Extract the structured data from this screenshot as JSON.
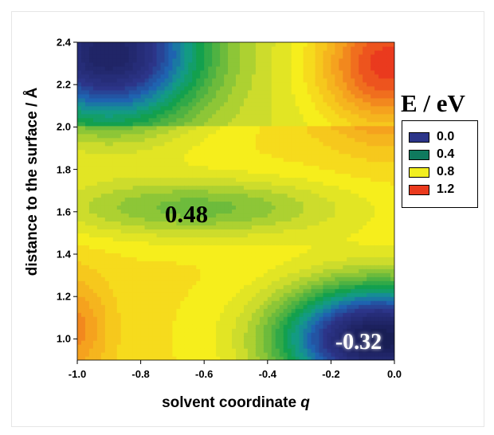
{
  "chart_data": {
    "type": "heatmap",
    "title": "",
    "xlabel": "solvent coordinate",
    "xlabel_symbol": "q",
    "ylabel": "distance to the surface / Å",
    "xlim": [
      -1.0,
      0.0
    ],
    "ylim": [
      0.9,
      2.4
    ],
    "x_ticks": [
      "-1.0",
      "-0.8",
      "-0.6",
      "-0.4",
      "-0.2",
      "0.0"
    ],
    "y_ticks": [
      "1.0",
      "1.2",
      "1.4",
      "1.6",
      "1.8",
      "2.0",
      "2.2",
      "2.4"
    ],
    "colorbar": {
      "title": "E / eV",
      "entries": [
        {
          "label": "0.0",
          "value": 0.0,
          "color": "#2c3589"
        },
        {
          "label": "0.4",
          "value": 0.4,
          "color": "#0f7a5e"
        },
        {
          "label": "0.8",
          "value": 0.8,
          "color": "#f2ee20"
        },
        {
          "label": "1.2",
          "value": 1.2,
          "color": "#ea3a1e"
        }
      ],
      "placement": "right"
    },
    "color_stops": [
      {
        "value": -0.32,
        "color": "#181c52"
      },
      {
        "value": 0.0,
        "color": "#2c3589"
      },
      {
        "value": 0.15,
        "color": "#1f63b0"
      },
      {
        "value": 0.28,
        "color": "#139a8e"
      },
      {
        "value": 0.4,
        "color": "#13a04e"
      },
      {
        "value": 0.55,
        "color": "#6dbb3c"
      },
      {
        "value": 0.7,
        "color": "#cddc2c"
      },
      {
        "value": 0.8,
        "color": "#f6ee1c"
      },
      {
        "value": 1.0,
        "color": "#f5a21e"
      },
      {
        "value": 1.2,
        "color": "#ea3a1e"
      }
    ],
    "surface_features": [
      {
        "kind": "minimum",
        "q": -0.05,
        "d": 1.0,
        "energy": -0.32
      },
      {
        "kind": "minimum",
        "q": -0.9,
        "d": 2.35,
        "energy": -0.12
      },
      {
        "kind": "maximum",
        "q": -0.02,
        "d": 2.3,
        "energy": 1.2
      },
      {
        "kind": "saddle",
        "q": -0.7,
        "d": 1.58,
        "energy": 0.48
      }
    ],
    "annotations": [
      {
        "text": "0.48",
        "q": -0.65,
        "d": 1.57
      },
      {
        "text": "-0.32",
        "q": -0.1,
        "d": 0.97
      }
    ]
  }
}
